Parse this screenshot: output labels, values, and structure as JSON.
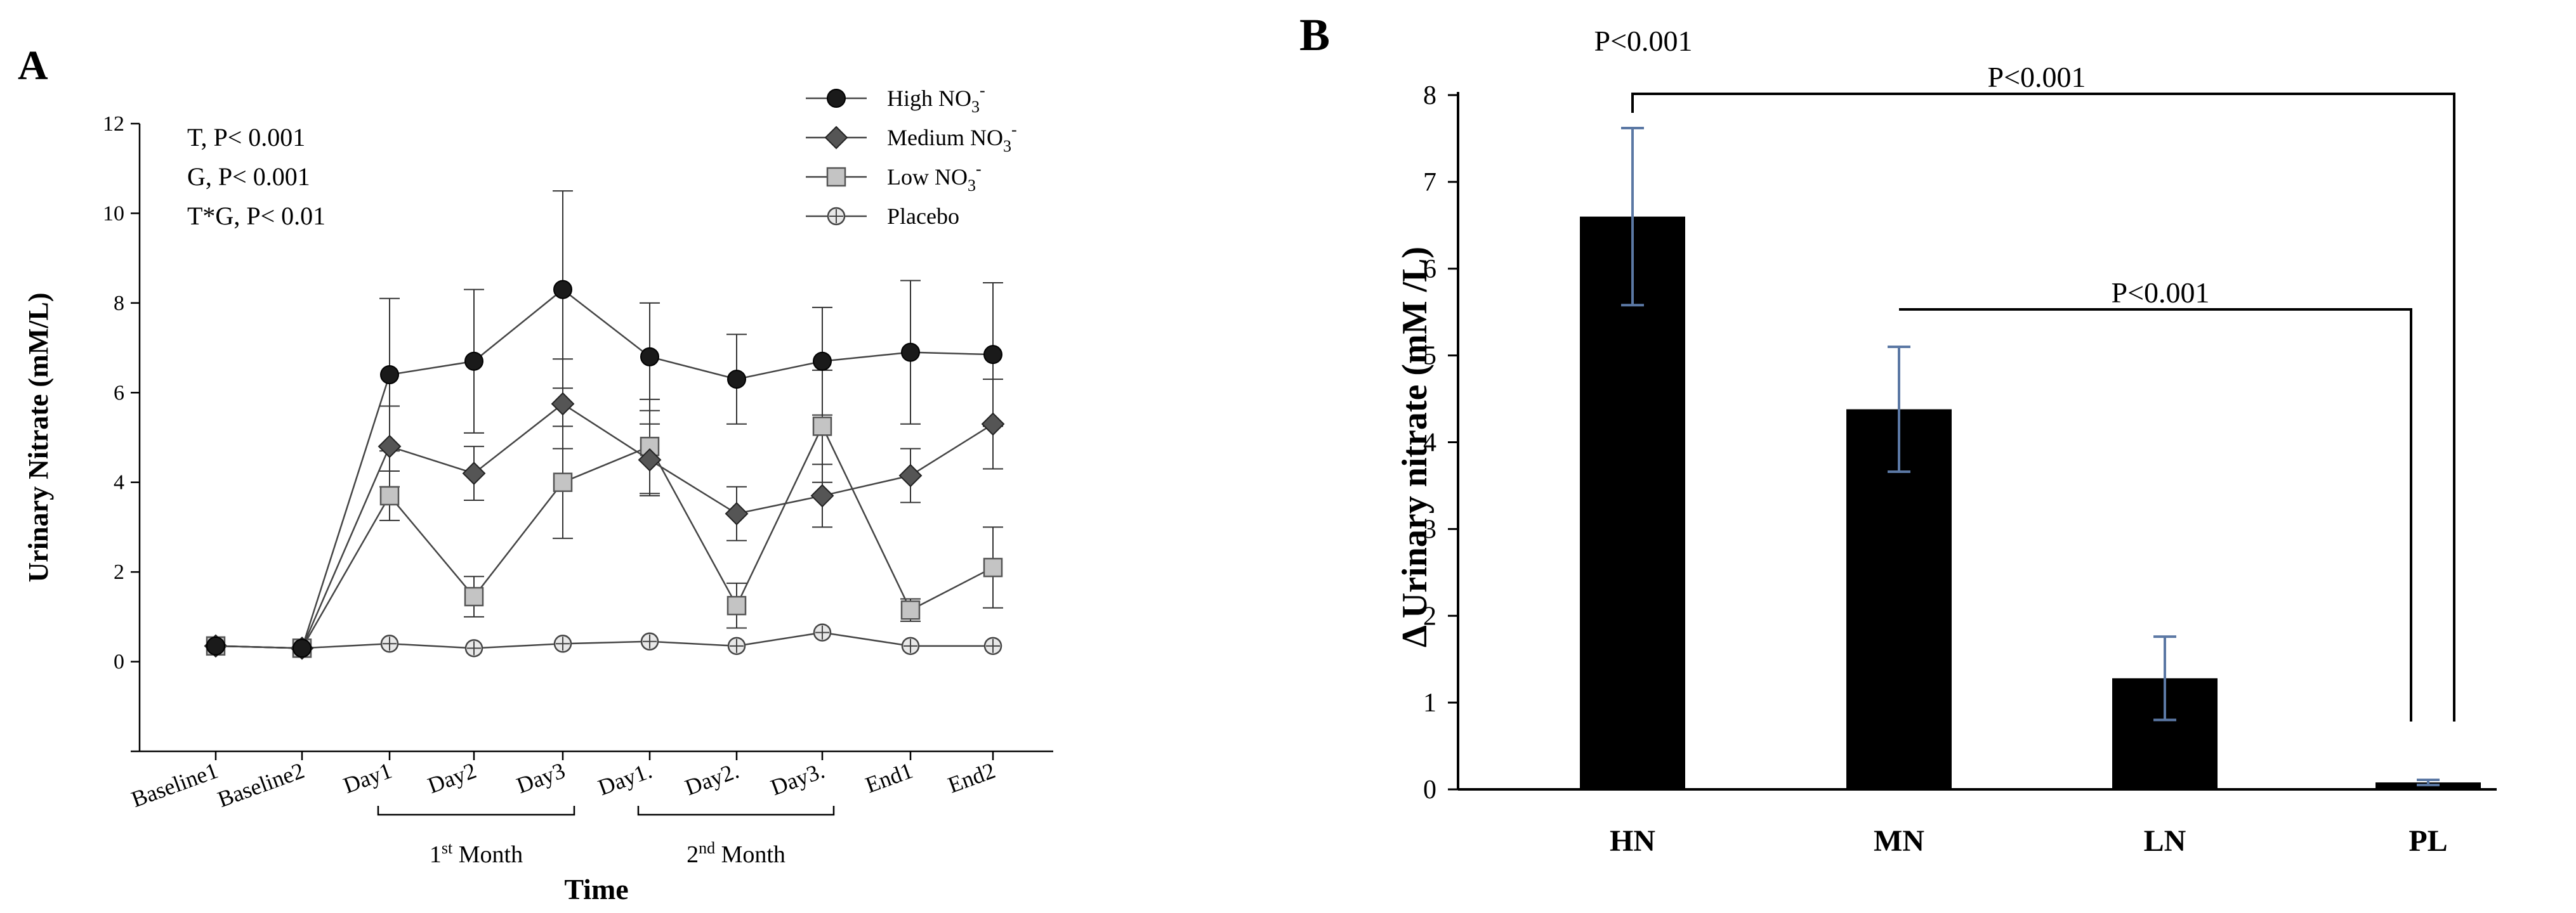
{
  "chart_data": [
    {
      "panel_label": "A",
      "type": "line",
      "ylabel": "Urinary Nitrate (mM/L)",
      "xlabel": "Time",
      "ylim": [
        -2,
        12
      ],
      "yticks": [
        "12",
        "10",
        "8",
        "6",
        "4",
        "2",
        "0"
      ],
      "categories": [
        "Baseline1",
        "Baseline2",
        "Day1",
        "Day2",
        "Day3",
        "Day1.",
        "Day2.",
        "Day3.",
        "End1",
        "End2"
      ],
      "brackets": [
        {
          "from": 2,
          "to": 4,
          "label_base": "1",
          "label_sup": "st",
          "label_rest": " Month"
        },
        {
          "from": 5,
          "to": 7,
          "label_base": "2",
          "label_sup": "nd",
          "label_rest": " Month"
        }
      ],
      "stats": [
        "T, P< 0.001",
        "G, P< 0.001",
        "T*G, P< 0.01"
      ],
      "legend_position": "top-right",
      "series": [
        {
          "name": "High NO",
          "sub": "3",
          "sup": "-",
          "marker": "circle",
          "values": [
            0.35,
            0.3,
            6.4,
            6.7,
            8.3,
            6.8,
            6.3,
            6.7,
            6.9,
            6.85
          ],
          "errors": [
            0.1,
            0.1,
            1.7,
            1.6,
            2.2,
            1.2,
            1.0,
            1.2,
            1.6,
            1.6
          ]
        },
        {
          "name": "Medium NO",
          "sub": "3",
          "sup": "-",
          "marker": "diamond",
          "values": [
            0.35,
            0.3,
            4.8,
            4.2,
            5.75,
            4.5,
            3.3,
            3.7,
            4.15,
            5.3
          ],
          "errors": [
            0.1,
            0.1,
            0.9,
            0.6,
            1.0,
            0.8,
            0.6,
            0.7,
            0.6,
            1.0
          ]
        },
        {
          "name": "Low NO",
          "sub": "3",
          "sup": "-",
          "marker": "square",
          "values": [
            0.35,
            0.3,
            3.7,
            1.45,
            4.0,
            4.8,
            1.25,
            5.25,
            1.15,
            2.1
          ],
          "errors": [
            0.1,
            0.1,
            0.55,
            0.45,
            1.25,
            1.05,
            0.5,
            1.25,
            0.25,
            0.9
          ]
        },
        {
          "name": "Placebo",
          "sub": "",
          "sup": "",
          "marker": "crosscircle",
          "values": [
            0.35,
            0.3,
            0.4,
            0.3,
            0.4,
            0.45,
            0.35,
            0.65,
            0.35,
            0.35
          ],
          "errors": [
            0.05,
            0.05,
            0.05,
            0.05,
            0.05,
            0.05,
            0.05,
            0.05,
            0.05,
            0.05
          ]
        }
      ]
    },
    {
      "panel_label": "B",
      "type": "bar",
      "ylabel": "Δ Urinary nitrate (mM /L)",
      "ylim": [
        0,
        8
      ],
      "yticks": [
        "0",
        "1",
        "2",
        "3",
        "4",
        "5",
        "6",
        "7",
        "8"
      ],
      "categories": [
        "HN",
        "MN",
        "LN",
        "PL"
      ],
      "values": [
        6.6,
        4.38,
        1.28,
        0.08
      ],
      "errors": [
        1.02,
        0.72,
        0.48,
        0.03
      ],
      "annotations": [
        {
          "text": "P<0.001",
          "type": "overall"
        },
        {
          "text": "P<0.001",
          "type": "bracket",
          "from": 0,
          "to": 3
        },
        {
          "text": "P<0.001",
          "type": "bracket",
          "from": 1,
          "to": 3
        }
      ]
    }
  ]
}
